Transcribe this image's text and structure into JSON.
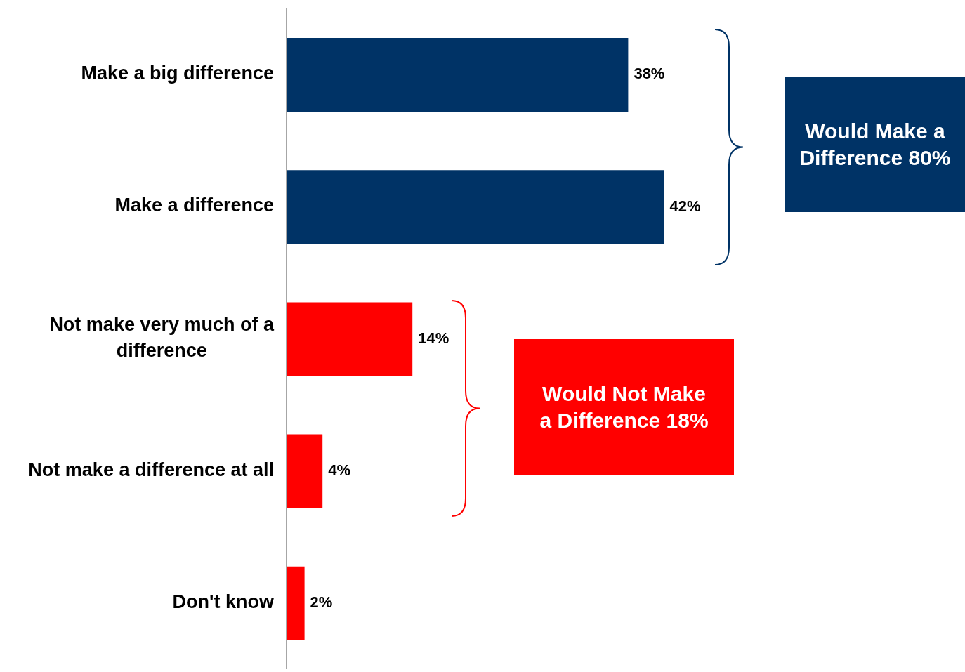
{
  "chart_data": {
    "type": "bar",
    "orientation": "horizontal",
    "categories": [
      "Make a big difference",
      "Make a difference",
      "Not make very much of a difference",
      "Not make a difference at all",
      "Don't know"
    ],
    "values": [
      38,
      42,
      14,
      4,
      2
    ],
    "value_labels": [
      "38%",
      "42%",
      "14%",
      "4%",
      "2%"
    ],
    "colors": [
      "#003366",
      "#003366",
      "#ff0000",
      "#ff0000",
      "#ff0000"
    ],
    "xlim": [
      0,
      75
    ],
    "tick_labels": "y",
    "grid": false,
    "legend": false,
    "annotations": [
      "Would Make a Difference 80%",
      "Would Not Make a Difference 18%"
    ]
  }
}
